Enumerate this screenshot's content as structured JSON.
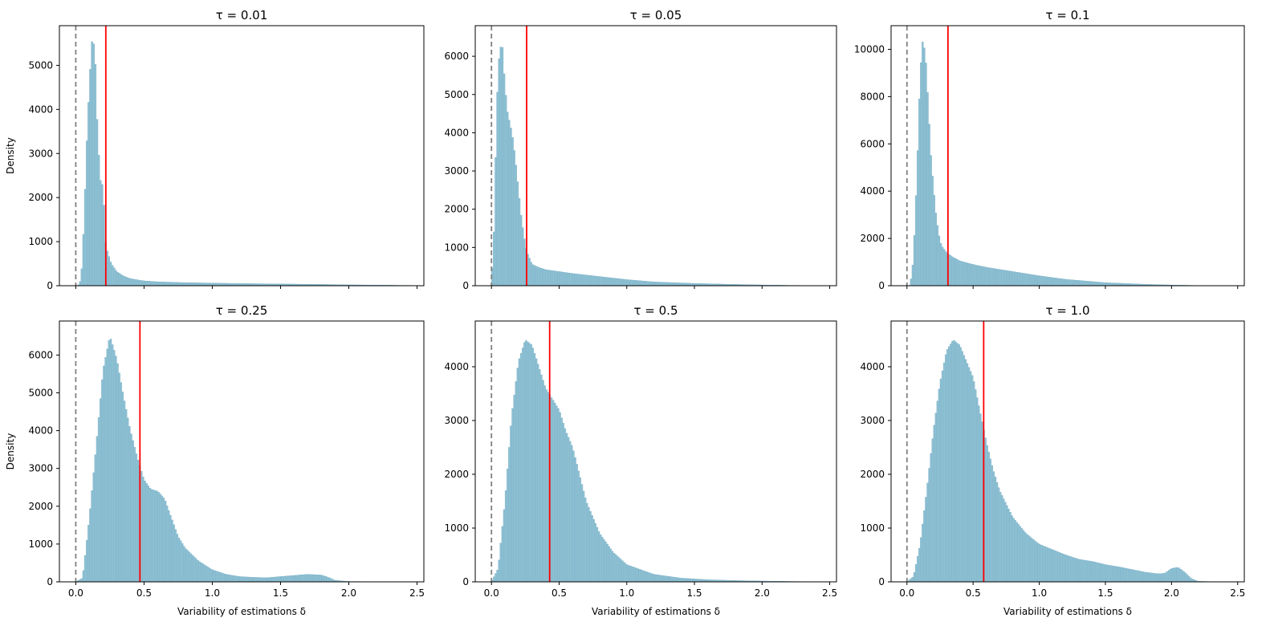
{
  "figure": {
    "colors": {
      "bar_fill": "#8fc1d4",
      "bar_edge": "#6fa8bf",
      "zero_line": "#808080",
      "median_line": "#ff0000",
      "axis": "#000000"
    }
  },
  "chart_data": [
    {
      "type": "bar",
      "title": "τ = 0.01",
      "xlabel": "",
      "ylabel": "Density",
      "xlim": [
        -0.12,
        2.55
      ],
      "ylim": [
        0,
        5900
      ],
      "xticks": [
        0.0,
        0.5,
        1.0,
        1.5,
        2.0,
        2.5
      ],
      "xtick_labels": [],
      "yticks": [
        0,
        1000,
        2000,
        3000,
        4000,
        5000
      ],
      "ytick_labels": [
        "0",
        "1000",
        "2000",
        "3000",
        "4000",
        "5000"
      ],
      "zero_line_x": 0.0,
      "median_line_x": 0.22,
      "histogram": {
        "x": [
          0.0,
          0.02,
          0.04,
          0.06,
          0.08,
          0.1,
          0.12,
          0.14,
          0.16,
          0.18,
          0.2,
          0.22,
          0.24,
          0.26,
          0.3,
          0.35,
          0.4,
          0.5,
          0.6,
          0.8,
          1.0,
          1.2,
          1.5,
          1.8,
          2.0,
          2.2,
          2.4
        ],
        "y": [
          0,
          20,
          150,
          1400,
          3200,
          4600,
          5600,
          5400,
          3400,
          2400,
          2250,
          900,
          700,
          500,
          320,
          220,
          160,
          110,
          90,
          70,
          60,
          50,
          40,
          30,
          20,
          15,
          8
        ]
      }
    },
    {
      "type": "bar",
      "title": "τ = 0.05",
      "xlabel": "",
      "ylabel": "",
      "xlim": [
        -0.12,
        2.55
      ],
      "ylim": [
        0,
        6800
      ],
      "xticks": [
        0.0,
        0.5,
        1.0,
        1.5,
        2.0,
        2.5
      ],
      "xtick_labels": [],
      "yticks": [
        0,
        1000,
        2000,
        3000,
        4000,
        5000,
        6000
      ],
      "ytick_labels": [
        "0",
        "1000",
        "2000",
        "3000",
        "4000",
        "5000",
        "6000"
      ],
      "zero_line_x": 0.0,
      "median_line_x": 0.26,
      "histogram": {
        "x": [
          0.0,
          0.02,
          0.04,
          0.06,
          0.08,
          0.1,
          0.12,
          0.14,
          0.16,
          0.18,
          0.2,
          0.22,
          0.24,
          0.26,
          0.3,
          0.35,
          0.4,
          0.5,
          0.6,
          0.8,
          1.0,
          1.2,
          1.5,
          1.8,
          2.0,
          2.2,
          2.4
        ],
        "y": [
          0,
          1500,
          4800,
          6200,
          6300,
          5200,
          4500,
          4200,
          3800,
          3200,
          2500,
          1800,
          1300,
          900,
          560,
          480,
          420,
          370,
          320,
          240,
          160,
          100,
          60,
          35,
          20,
          10,
          5
        ]
      }
    },
    {
      "type": "bar",
      "title": "τ = 0.1",
      "xlabel": "",
      "ylabel": "",
      "xlim": [
        -0.12,
        2.55
      ],
      "ylim": [
        0,
        11000
      ],
      "xticks": [
        0.0,
        0.5,
        1.0,
        1.5,
        2.0,
        2.5
      ],
      "xtick_labels": [],
      "yticks": [
        0,
        2000,
        4000,
        6000,
        8000,
        10000
      ],
      "ytick_labels": [
        "0",
        "2000",
        "4000",
        "6000",
        "8000",
        "10000"
      ],
      "zero_line_x": 0.0,
      "median_line_x": 0.31,
      "histogram": {
        "x": [
          0.0,
          0.02,
          0.04,
          0.06,
          0.08,
          0.1,
          0.12,
          0.14,
          0.16,
          0.18,
          0.2,
          0.22,
          0.24,
          0.26,
          0.3,
          0.35,
          0.4,
          0.5,
          0.6,
          0.8,
          1.0,
          1.2,
          1.5,
          1.8,
          2.0,
          2.2,
          2.4
        ],
        "y": [
          0,
          20,
          500,
          2500,
          5500,
          9000,
          10400,
          9800,
          7800,
          5600,
          4200,
          3000,
          2200,
          1700,
          1400,
          1200,
          1050,
          900,
          780,
          600,
          420,
          270,
          130,
          60,
          30,
          10,
          5
        ]
      }
    },
    {
      "type": "bar",
      "title": "τ = 0.25",
      "xlabel": "Variability of estimations δ",
      "ylabel": "Density",
      "xlim": [
        -0.12,
        2.55
      ],
      "ylim": [
        0,
        6900
      ],
      "xticks": [
        0.0,
        0.5,
        1.0,
        1.5,
        2.0,
        2.5
      ],
      "xtick_labels": [
        "0.0",
        "0.5",
        "1.0",
        "1.5",
        "2.0",
        "2.5"
      ],
      "yticks": [
        0,
        1000,
        2000,
        3000,
        4000,
        5000,
        6000
      ],
      "ytick_labels": [
        "0",
        "1000",
        "2000",
        "3000",
        "4000",
        "5000",
        "6000"
      ],
      "zero_line_x": 0.0,
      "median_line_x": 0.47,
      "histogram": {
        "x": [
          0.0,
          0.05,
          0.1,
          0.15,
          0.2,
          0.25,
          0.3,
          0.35,
          0.4,
          0.45,
          0.5,
          0.55,
          0.6,
          0.65,
          0.7,
          0.75,
          0.8,
          0.9,
          1.0,
          1.1,
          1.2,
          1.3,
          1.4,
          1.5,
          1.6,
          1.7,
          1.8,
          1.85,
          1.9,
          2.0,
          2.2,
          2.4
        ],
        "y": [
          0,
          100,
          1700,
          3600,
          5600,
          6500,
          5900,
          4900,
          4000,
          3300,
          2700,
          2450,
          2400,
          2200,
          1700,
          1200,
          900,
          550,
          320,
          200,
          140,
          120,
          110,
          140,
          170,
          200,
          180,
          120,
          40,
          10,
          5,
          0
        ]
      }
    },
    {
      "type": "bar",
      "title": "τ = 0.5",
      "xlabel": "Variability of estimations δ",
      "ylabel": "",
      "xlim": [
        -0.12,
        2.55
      ],
      "ylim": [
        0,
        4850
      ],
      "xticks": [
        0.0,
        0.5,
        1.0,
        1.5,
        2.0,
        2.5
      ],
      "xtick_labels": [
        "0.0",
        "0.5",
        "1.0",
        "1.5",
        "2.0",
        "2.5"
      ],
      "yticks": [
        0,
        1000,
        2000,
        3000,
        4000
      ],
      "ytick_labels": [
        "0",
        "1000",
        "2000",
        "3000",
        "4000"
      ],
      "zero_line_x": 0.0,
      "median_line_x": 0.43,
      "histogram": {
        "x": [
          0.0,
          0.05,
          0.1,
          0.15,
          0.2,
          0.25,
          0.3,
          0.35,
          0.4,
          0.45,
          0.5,
          0.55,
          0.6,
          0.65,
          0.7,
          0.8,
          0.9,
          1.0,
          1.2,
          1.4,
          1.6,
          1.8,
          2.0,
          2.2,
          2.4
        ],
        "y": [
          0,
          250,
          1500,
          3100,
          4100,
          4500,
          4400,
          4000,
          3600,
          3400,
          3200,
          2800,
          2500,
          2000,
          1500,
          900,
          550,
          320,
          140,
          70,
          40,
          25,
          15,
          8,
          3
        ]
      }
    },
    {
      "type": "bar",
      "title": "τ = 1.0",
      "xlabel": "Variability of estimations δ",
      "ylabel": "",
      "xlim": [
        -0.12,
        2.55
      ],
      "ylim": [
        0,
        4850
      ],
      "xticks": [
        0.0,
        0.5,
        1.0,
        1.5,
        2.0,
        2.5
      ],
      "xtick_labels": [
        "0.0",
        "0.5",
        "1.0",
        "1.5",
        "2.0",
        "2.5"
      ],
      "yticks": [
        0,
        1000,
        2000,
        3000,
        4000
      ],
      "ytick_labels": [
        "0",
        "1000",
        "2000",
        "3000",
        "4000"
      ],
      "zero_line_x": 0.0,
      "median_line_x": 0.58,
      "histogram": {
        "x": [
          0.0,
          0.05,
          0.1,
          0.15,
          0.2,
          0.25,
          0.3,
          0.35,
          0.4,
          0.45,
          0.5,
          0.55,
          0.6,
          0.65,
          0.7,
          0.8,
          0.9,
          1.0,
          1.1,
          1.2,
          1.3,
          1.4,
          1.5,
          1.6,
          1.7,
          1.8,
          1.9,
          1.95,
          2.0,
          2.05,
          2.1,
          2.15,
          2.2,
          2.4
        ],
        "y": [
          0,
          100,
          700,
          1700,
          2800,
          3700,
          4300,
          4500,
          4400,
          4100,
          3800,
          3200,
          2600,
          2100,
          1700,
          1200,
          900,
          700,
          600,
          500,
          420,
          380,
          320,
          280,
          230,
          180,
          150,
          160,
          250,
          270,
          180,
          60,
          10,
          0
        ]
      }
    }
  ]
}
